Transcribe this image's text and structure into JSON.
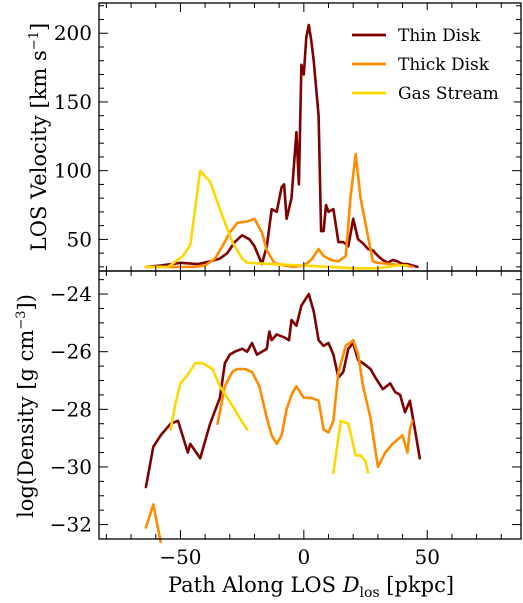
{
  "chart_data": [
    {
      "panel": "top",
      "type": "line",
      "ylabel": "LOS Velocity [km s⁻¹]",
      "xlim": [
        -83,
        88
      ],
      "ylim": [
        27,
        222
      ],
      "yticks": [
        50,
        100,
        150,
        200
      ],
      "ytick_labels": [
        "50",
        "100",
        "150",
        "200"
      ],
      "legend_position": "top-right",
      "series": [
        {
          "name": "Thin Disk",
          "color": "#7f0000",
          "points": [
            [
              -64,
              30
            ],
            [
              -58,
              31
            ],
            [
              -50,
              33
            ],
            [
              -43,
              32
            ],
            [
              -38,
              34
            ],
            [
              -34,
              36
            ],
            [
              -31,
              40
            ],
            [
              -28,
              48
            ],
            [
              -25,
              53
            ],
            [
              -22,
              50
            ],
            [
              -20,
              45
            ],
            [
              -17,
              32
            ],
            [
              -15,
              45
            ],
            [
              -13,
              72
            ],
            [
              -11,
              70
            ],
            [
              -9,
              88
            ],
            [
              -8,
              90
            ],
            [
              -7,
              65
            ],
            [
              -5,
              80
            ],
            [
              -3,
              128
            ],
            [
              -2,
              90
            ],
            [
              -1,
              177
            ],
            [
              0,
              170
            ],
            [
              1,
              197
            ],
            [
              2,
              206
            ],
            [
              3,
              195
            ],
            [
              4,
              180
            ],
            [
              6,
              140
            ],
            [
              7,
              56
            ],
            [
              8,
              56
            ],
            [
              9,
              75
            ],
            [
              10,
              70
            ],
            [
              12,
              72
            ],
            [
              14,
              48
            ],
            [
              16,
              48
            ],
            [
              18,
              45
            ],
            [
              20,
              65
            ],
            [
              22,
              50
            ],
            [
              24,
              47
            ],
            [
              26,
              43
            ],
            [
              28,
              42
            ],
            [
              30,
              38
            ],
            [
              32,
              35
            ],
            [
              34,
              33
            ],
            [
              36,
              35
            ],
            [
              38,
              34
            ],
            [
              40,
              32
            ],
            [
              42,
              32
            ],
            [
              46,
              30
            ]
          ]
        },
        {
          "name": "Thick Disk",
          "color": "#ff8c00",
          "points": [
            [
              -64,
              30
            ],
            [
              -58,
              30
            ],
            [
              -50,
              30
            ],
            [
              -45,
              30
            ],
            [
              -40,
              31
            ],
            [
              -36,
              36
            ],
            [
              -33,
              45
            ],
            [
              -30,
              55
            ],
            [
              -27,
              62
            ],
            [
              -23,
              63
            ],
            [
              -20,
              65
            ],
            [
              -17,
              55
            ],
            [
              -15,
              42
            ],
            [
              -12,
              33
            ],
            [
              -8,
              31
            ],
            [
              -4,
              30
            ],
            [
              0,
              31
            ],
            [
              3,
              35
            ],
            [
              6,
              43
            ],
            [
              8,
              38
            ],
            [
              11,
              35
            ],
            [
              14,
              34
            ],
            [
              17,
              38
            ],
            [
              19,
              82
            ],
            [
              21,
              112
            ],
            [
              23,
              80
            ],
            [
              26,
              52
            ],
            [
              28,
              34
            ],
            [
              30,
              33
            ],
            [
              35,
              32
            ],
            [
              41,
              31
            ],
            [
              44,
              30
            ]
          ]
        },
        {
          "name": "Gas Stream",
          "color": "#ffd700",
          "points": [
            [
              -64,
              30
            ],
            [
              -55,
              30
            ],
            [
              -49,
              38
            ],
            [
              -46,
              46
            ],
            [
              -42,
              100
            ],
            [
              -38,
              92
            ],
            [
              -34,
              72
            ],
            [
              -29,
              48
            ],
            [
              -25,
              36
            ],
            [
              -23,
              33
            ],
            [
              11,
              30
            ],
            [
              20,
              29
            ],
            [
              30,
              29
            ],
            [
              38,
              31
            ],
            [
              42,
              31
            ]
          ]
        }
      ]
    },
    {
      "panel": "bottom",
      "type": "line",
      "xlabel": "Path Along LOS D_los [pkpc]",
      "xlabel_main": "Path Along LOS ",
      "xlabel_var": "D",
      "xlabel_sub": "los",
      "xlabel_unit": " [pkpc]",
      "ylabel": "log(Density [g cm⁻³])",
      "xlim": [
        -83,
        88
      ],
      "ylim": [
        -32.5,
        -23.2
      ],
      "xticks": [
        -50,
        0,
        50
      ],
      "xtick_labels": [
        "−50",
        "0",
        "50"
      ],
      "yticks": [
        -32,
        -30,
        -28,
        -26,
        -24
      ],
      "ytick_labels": [
        "−32",
        "−30",
        "−28",
        "−26",
        "−24"
      ],
      "series": [
        {
          "name": "Thin Disk",
          "color": "#7f0000",
          "segments": [
            [
              [
                -64,
                -30.7
              ],
              [
                -61,
                -29.3
              ],
              [
                -58,
                -28.9
              ],
              [
                -54,
                -28.5
              ],
              [
                -51,
                -28.4
              ],
              [
                -47,
                -29.5
              ],
              [
                -46,
                -29.2
              ],
              [
                -42,
                -29.7
              ],
              [
                -38,
                -28.5
              ],
              [
                -34,
                -27.6
              ],
              [
                -32,
                -26.4
              ],
              [
                -30,
                -26.1
              ],
              [
                -28,
                -26.0
              ],
              [
                -25,
                -25.9
              ],
              [
                -23,
                -26.0
              ],
              [
                -21,
                -25.7
              ],
              [
                -19,
                -26.1
              ],
              [
                -17,
                -26.0
              ],
              [
                -15,
                -25.9
              ],
              [
                -14,
                -25.3
              ],
              [
                -13,
                -25.6
              ],
              [
                -11,
                -25.4
              ],
              [
                -8,
                -25.5
              ],
              [
                -6,
                -25.6
              ],
              [
                -5,
                -24.9
              ],
              [
                -3,
                -25.1
              ],
              [
                -1,
                -24.4
              ],
              [
                2,
                -24.0
              ],
              [
                4,
                -24.6
              ],
              [
                6,
                -25.6
              ],
              [
                8,
                -25.8
              ],
              [
                10,
                -25.7
              ],
              [
                12,
                -26.1
              ],
              [
                14,
                -26.9
              ],
              [
                16,
                -26.7
              ],
              [
                18,
                -25.9
              ],
              [
                20,
                -25.7
              ],
              [
                22,
                -26.3
              ],
              [
                24,
                -26.4
              ],
              [
                27,
                -26.6
              ],
              [
                29,
                -26.9
              ],
              [
                32,
                -27.3
              ],
              [
                35,
                -27.1
              ],
              [
                37,
                -27.4
              ],
              [
                39,
                -27.5
              ],
              [
                41,
                -28.1
              ],
              [
                43,
                -27.7
              ],
              [
                45,
                -28.7
              ],
              [
                47,
                -29.7
              ]
            ]
          ]
        },
        {
          "name": "Thick Disk",
          "color": "#ff8c00",
          "segments": [
            [
              [
                -64,
                -32.1
              ],
              [
                -61,
                -31.3
              ],
              [
                -58,
                -32.6
              ]
            ],
            [
              [
                -35,
                -28.5
              ],
              [
                -32,
                -27.2
              ],
              [
                -29,
                -26.7
              ],
              [
                -27,
                -26.6
              ],
              [
                -24,
                -26.6
              ],
              [
                -21,
                -26.7
              ],
              [
                -18,
                -27.2
              ],
              [
                -15,
                -28.3
              ],
              [
                -13,
                -28.9
              ],
              [
                -11,
                -29.2
              ],
              [
                -9,
                -28.9
              ],
              [
                -7,
                -28.0
              ],
              [
                -5,
                -27.5
              ],
              [
                -3,
                -27.2
              ],
              [
                0,
                -27.6
              ],
              [
                3,
                -27.6
              ],
              [
                6,
                -27.7
              ],
              [
                8,
                -28.7
              ],
              [
                10,
                -28.8
              ],
              [
                12,
                -28.4
              ],
              [
                14,
                -26.7
              ],
              [
                17,
                -25.8
              ],
              [
                20,
                -25.6
              ],
              [
                22,
                -26.1
              ],
              [
                24,
                -27.2
              ],
              [
                27,
                -28.3
              ],
              [
                30,
                -30.0
              ],
              [
                33,
                -29.5
              ],
              [
                36,
                -29.2
              ],
              [
                40,
                -28.9
              ],
              [
                42,
                -29.5
              ],
              [
                43,
                -28.7
              ],
              [
                44,
                -28.4
              ]
            ]
          ]
        },
        {
          "name": "Gas Stream",
          "color": "#ffd700",
          "segments": [
            [
              [
                -54,
                -28.7
              ],
              [
                -52,
                -27.8
              ],
              [
                -50,
                -27.1
              ],
              [
                -47,
                -26.8
              ],
              [
                -44,
                -26.4
              ],
              [
                -41,
                -26.4
              ],
              [
                -37,
                -26.6
              ],
              [
                -34,
                -27.2
              ],
              [
                -31,
                -27.6
              ],
              [
                -28,
                -28.0
              ],
              [
                -26,
                -28.3
              ],
              [
                -23,
                -28.7
              ]
            ],
            [
              [
                12,
                -30.2
              ],
              [
                15,
                -28.4
              ],
              [
                18,
                -28.5
              ],
              [
                21,
                -29.6
              ],
              [
                23,
                -29.6
              ],
              [
                25,
                -29.8
              ],
              [
                26,
                -30.2
              ]
            ]
          ]
        }
      ]
    }
  ]
}
